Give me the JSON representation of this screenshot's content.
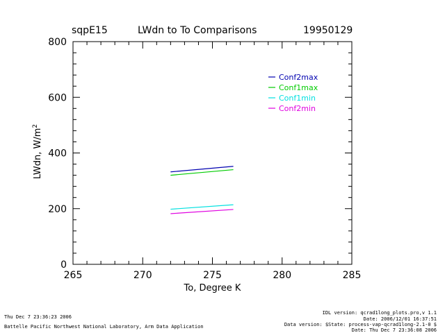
{
  "header": {
    "site": "sqpE15",
    "title": "LWdn to To Comparisons",
    "date": "19950129"
  },
  "chart_data": {
    "type": "line",
    "title": "LWdn to To Comparisons",
    "xlabel": "To, Degree K",
    "ylabel": "LWdn, W/m",
    "ylabel_superscript": "2",
    "xlim": [
      265,
      285
    ],
    "ylim": [
      0,
      800
    ],
    "xticks": [
      265,
      270,
      275,
      280,
      285
    ],
    "yticks": [
      0,
      200,
      400,
      600,
      800
    ],
    "legend_position": "top-right",
    "series": [
      {
        "name": "Conf2max",
        "color": "#0000b0",
        "x": [
          272.0,
          276.5
        ],
        "y": [
          332,
          352
        ]
      },
      {
        "name": "Conf1max",
        "color": "#00cc00",
        "x": [
          272.0,
          276.5
        ],
        "y": [
          320,
          340
        ]
      },
      {
        "name": "Conf1min",
        "color": "#00e0e0",
        "x": [
          272.0,
          276.5
        ],
        "y": [
          198,
          214
        ]
      },
      {
        "name": "Conf2min",
        "color": "#e000e0",
        "x": [
          272.0,
          276.5
        ],
        "y": [
          182,
          197
        ]
      }
    ]
  },
  "footer": {
    "left_line1": "Thu Dec  7 23:36:23 2006",
    "left_line2": "Battelle Pacific Northwest National Laboratory, Arm Data Application",
    "right_line1": "IDL version: qcrad1long_plots.pro,v 1.1",
    "right_line2": "Date: 2006/12/01 16:37:51",
    "right_line3": "Data version: $State: process-vap-qcrad1long-2.1-0 $",
    "right_line4": "Date: Thu Dec  7 23:36:08 2006"
  }
}
